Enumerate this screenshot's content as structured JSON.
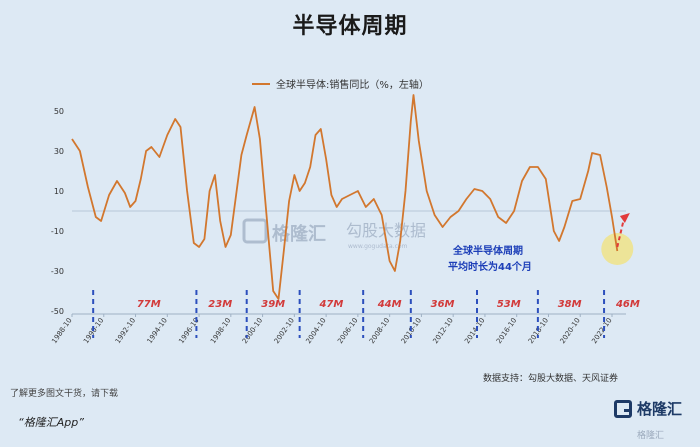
{
  "title": "半导体周期",
  "legend": {
    "label": "全球半导体:销售同比（%，左轴）",
    "color": "#d2772e"
  },
  "watermark": {
    "logo_text": "格隆汇",
    "text": "勾股大数据",
    "url": "www.gogudata.com"
  },
  "annotation": {
    "line1": "全球半导体周期",
    "line2": "平均时长为44个月"
  },
  "footer": {
    "note": "了解更多图文干货，请下载",
    "app": "“格隆汇App”",
    "source": "数据支持：勾股大数据、天风证券",
    "brand": "格隆汇",
    "corner_logo": "格隆汇"
  },
  "chart_data": {
    "type": "line",
    "title": "半导体周期",
    "xlabel": "",
    "ylabel": "",
    "ylim": [
      -50,
      60
    ],
    "y_ticks": [
      -50,
      -30,
      -10,
      10,
      30,
      50
    ],
    "x_ticks": [
      "1988-10",
      "1990-10",
      "1992-10",
      "1994-10",
      "1996-10",
      "1998-10",
      "2000-10",
      "2002-10",
      "2004-10",
      "2006-10",
      "2008-10",
      "2010-10",
      "2012-10",
      "2014-10",
      "2016-10",
      "2018-10",
      "2020-10",
      "2022-10"
    ],
    "grid": false,
    "legend_position": "top-center",
    "series": [
      {
        "name": "全球半导体:销售同比（%，左轴）",
        "color": "#d2772e",
        "points": [
          [
            "1988-10",
            36
          ],
          [
            "1989-04",
            30
          ],
          [
            "1989-10",
            12
          ],
          [
            "1990-04",
            -3
          ],
          [
            "1990-08",
            -5
          ],
          [
            "1991-02",
            8
          ],
          [
            "1991-08",
            15
          ],
          [
            "1992-02",
            9
          ],
          [
            "1992-06",
            2
          ],
          [
            "1992-10",
            5
          ],
          [
            "1993-02",
            16
          ],
          [
            "1993-06",
            30
          ],
          [
            "1993-10",
            32
          ],
          [
            "1994-04",
            27
          ],
          [
            "1994-10",
            38
          ],
          [
            "1995-04",
            46
          ],
          [
            "1995-08",
            42
          ],
          [
            "1996-01",
            10
          ],
          [
            "1996-06",
            -16
          ],
          [
            "1996-10",
            -18
          ],
          [
            "1997-02",
            -14
          ],
          [
            "1997-06",
            10
          ],
          [
            "1997-10",
            18
          ],
          [
            "1998-02",
            -5
          ],
          [
            "1998-06",
            -18
          ],
          [
            "1998-10",
            -12
          ],
          [
            "1999-02",
            8
          ],
          [
            "1999-06",
            28
          ],
          [
            "1999-10",
            38
          ],
          [
            "2000-04",
            52
          ],
          [
            "2000-08",
            36
          ],
          [
            "2001-02",
            -10
          ],
          [
            "2001-06",
            -40
          ],
          [
            "2001-10",
            -44
          ],
          [
            "2002-02",
            -20
          ],
          [
            "2002-06",
            5
          ],
          [
            "2002-10",
            18
          ],
          [
            "2003-02",
            10
          ],
          [
            "2003-06",
            14
          ],
          [
            "2003-10",
            22
          ],
          [
            "2004-02",
            38
          ],
          [
            "2004-06",
            41
          ],
          [
            "2004-10",
            26
          ],
          [
            "2005-02",
            8
          ],
          [
            "2005-06",
            2
          ],
          [
            "2005-10",
            6
          ],
          [
            "2006-04",
            8
          ],
          [
            "2006-10",
            10
          ],
          [
            "2007-04",
            2
          ],
          [
            "2007-10",
            6
          ],
          [
            "2008-04",
            -2
          ],
          [
            "2008-10",
            -25
          ],
          [
            "2009-02",
            -30
          ],
          [
            "2009-06",
            -15
          ],
          [
            "2009-10",
            10
          ],
          [
            "2010-02",
            45
          ],
          [
            "2010-04",
            58
          ],
          [
            "2010-08",
            35
          ],
          [
            "2011-02",
            10
          ],
          [
            "2011-08",
            -2
          ],
          [
            "2012-02",
            -8
          ],
          [
            "2012-08",
            -3
          ],
          [
            "2013-02",
            0
          ],
          [
            "2013-08",
            6
          ],
          [
            "2014-02",
            11
          ],
          [
            "2014-08",
            10
          ],
          [
            "2015-02",
            6
          ],
          [
            "2015-08",
            -3
          ],
          [
            "2016-02",
            -6
          ],
          [
            "2016-08",
            0
          ],
          [
            "2017-02",
            15
          ],
          [
            "2017-08",
            22
          ],
          [
            "2018-02",
            22
          ],
          [
            "2018-08",
            16
          ],
          [
            "2019-02",
            -10
          ],
          [
            "2019-06",
            -15
          ],
          [
            "2019-10",
            -8
          ],
          [
            "2020-04",
            5
          ],
          [
            "2020-10",
            6
          ],
          [
            "2021-04",
            20
          ],
          [
            "2021-07",
            29
          ],
          [
            "2022-01",
            28
          ],
          [
            "2022-06",
            12
          ],
          [
            "2022-10",
            -3
          ],
          [
            "2023-02",
            -20
          ]
        ]
      }
    ],
    "forecast_arrow": {
      "from": [
        "2023-02",
        -18
      ],
      "to": [
        "2023-10",
        -2
      ],
      "color": "#e23a3a"
    },
    "highlight_circle": {
      "at": [
        "2023-02",
        -19
      ],
      "color": "#f2e27a"
    },
    "cycle_dividers": [
      "1990-02",
      "1996-08",
      "1999-10",
      "2003-02",
      "2007-02",
      "2010-02",
      "2014-04",
      "2018-02",
      "2022-04"
    ],
    "cycle_labels": [
      {
        "label": "77M",
        "at": "1993-08"
      },
      {
        "label": "23M",
        "at": "1998-02"
      },
      {
        "label": "39M",
        "at": "2001-06"
      },
      {
        "label": "47M",
        "at": "2005-02"
      },
      {
        "label": "44M",
        "at": "2008-10"
      },
      {
        "label": "36M",
        "at": "2012-02"
      },
      {
        "label": "53M",
        "at": "2016-04"
      },
      {
        "label": "38M",
        "at": "2020-02"
      },
      {
        "label": "46M",
        "at": "2023-10"
      }
    ]
  }
}
